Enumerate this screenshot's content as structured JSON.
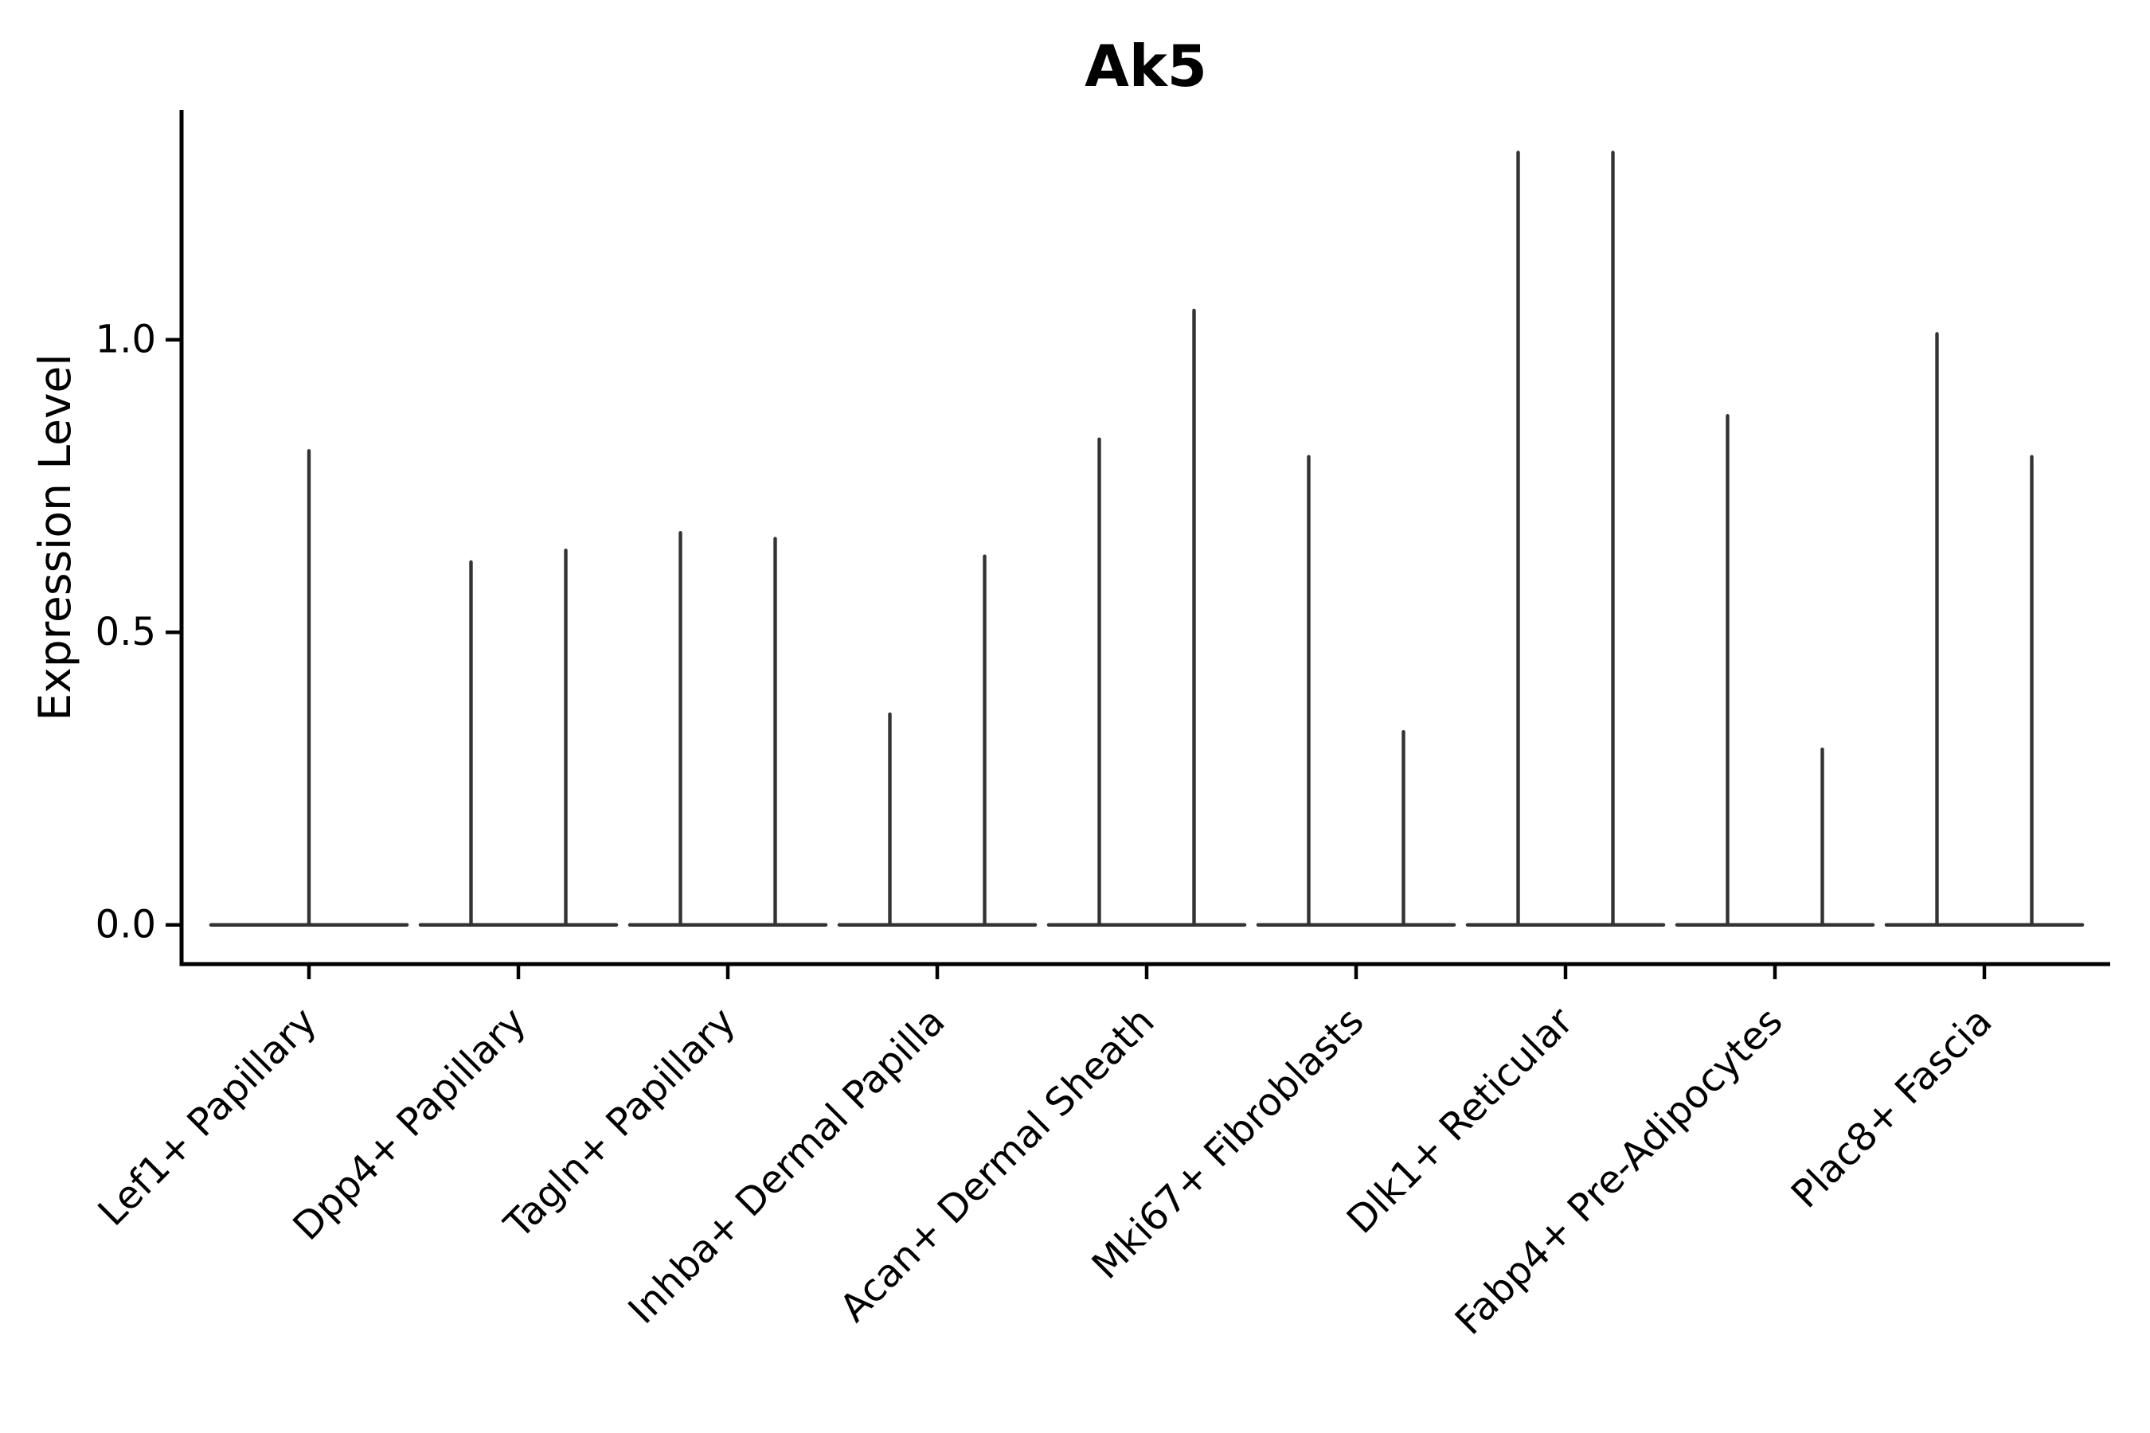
{
  "figure": {
    "background": "#ffffff"
  },
  "chart_data": {
    "type": "violin",
    "title": "Ak5",
    "xlabel": "",
    "ylabel": "Expression Level",
    "legend": "none",
    "grid": false,
    "ylim": [
      -0.07,
      1.39
    ],
    "ytick_values": [
      0.0,
      0.5,
      1.0
    ],
    "ytick_labels": [
      "0.0",
      "0.5",
      "1.0"
    ],
    "violin_color": "#333333",
    "axis_color": "#000000",
    "categories": [
      "Lef1+ Papillary",
      "Dpp4+ Papillary",
      "Tagln+ Papillary",
      "Inhba+ Dermal Papilla",
      "Acan+ Dermal Sheath",
      "Mki67+ Fibroblasts",
      "Dlk1+ Reticular",
      "Fabp4+ Pre-Adipocytes",
      "Plac8+ Fascia"
    ],
    "series": [
      {
        "category": "Lef1+ Papillary",
        "violin_max": [
          0.81
        ]
      },
      {
        "category": "Dpp4+ Papillary",
        "violin_max": [
          0.62,
          0.64
        ]
      },
      {
        "category": "Tagln+ Papillary",
        "violin_max": [
          0.67,
          0.66
        ]
      },
      {
        "category": "Inhba+ Dermal Papilla",
        "violin_max": [
          0.36,
          0.63
        ]
      },
      {
        "category": "Acan+ Dermal Sheath",
        "violin_max": [
          0.83,
          1.05
        ]
      },
      {
        "category": "Mki67+ Fibroblasts",
        "violin_max": [
          0.8,
          0.33
        ]
      },
      {
        "category": "Dlk1+ Reticular",
        "violin_max": [
          1.32,
          1.32
        ]
      },
      {
        "category": "Fabp4+ Pre-Adipocytes",
        "violin_max": [
          0.87,
          0.3
        ]
      },
      {
        "category": "Plac8+ Fascia",
        "violin_max": [
          1.01,
          0.8
        ]
      }
    ]
  }
}
